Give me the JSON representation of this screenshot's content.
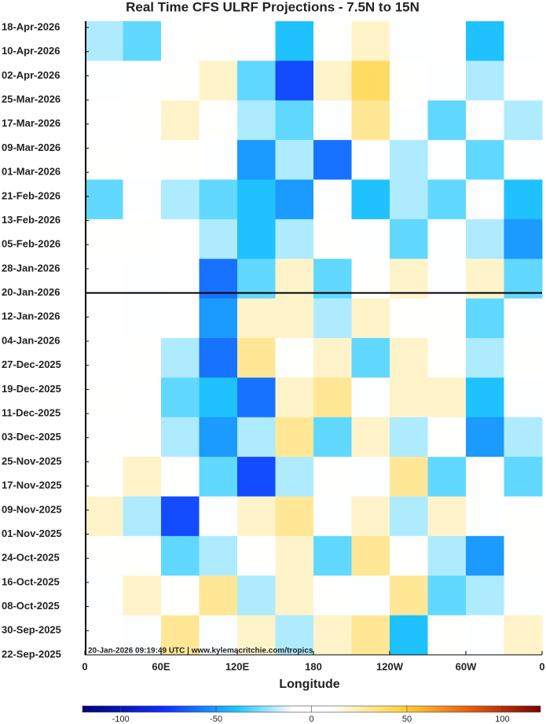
{
  "chart_data": {
    "type": "heatmap",
    "title": "Real Time CFS ULRF Projections - 7.5N to 15N",
    "xlabel": "Longitude",
    "annotation": "20-Jan-2026 09:19:49 UTC | www.kylemacritchie.com/tropics",
    "xlim": [
      0,
      360
    ],
    "xticks": [
      0,
      {
        "value": 60,
        "label": "60E"
      },
      {
        "value": 120,
        "label": "120E"
      },
      180,
      {
        "value": 240,
        "label": "120W"
      },
      {
        "value": 300,
        "label": "60W"
      },
      {
        "value": 360,
        "label": "0"
      }
    ],
    "yticks": [
      "18-Apr-2026",
      "10-Apr-2026",
      "02-Apr-2026",
      "25-Mar-2026",
      "17-Mar-2026",
      "09-Mar-2026",
      "01-Mar-2026",
      "21-Feb-2026",
      "13-Feb-2026",
      "05-Feb-2026",
      "28-Jan-2026",
      "20-Jan-2026",
      "12-Jan-2026",
      "04-Jan-2026",
      "27-Dec-2025",
      "19-Dec-2025",
      "11-Dec-2025",
      "03-Dec-2025",
      "25-Nov-2025",
      "17-Nov-2025",
      "09-Nov-2025",
      "01-Nov-2025",
      "24-Oct-2025",
      "16-Oct-2025",
      "08-Oct-2025",
      "30-Sep-2025",
      "22-Sep-2025"
    ],
    "clim": [
      -120,
      120
    ],
    "cticks": [
      -100,
      -50,
      0,
      50,
      100
    ],
    "z": [
      [
        -20,
        -30,
        0,
        10,
        -10,
        -40,
        10,
        20,
        -10,
        0,
        -40,
        -10
      ],
      [
        -10,
        0,
        10,
        20,
        -30,
        -70,
        20,
        40,
        10,
        -10,
        -20,
        0
      ],
      [
        0,
        10,
        20,
        10,
        -20,
        -30,
        -10,
        30,
        -10,
        -30,
        -10,
        -20
      ],
      [
        10,
        0,
        10,
        -10,
        -50,
        -20,
        -60,
        0,
        -20,
        -10,
        -30,
        -10
      ],
      [
        -30,
        -10,
        -20,
        -30,
        -40,
        -50,
        -10,
        -40,
        -20,
        -30,
        -10,
        -40
      ],
      [
        10,
        10,
        0,
        -20,
        -40,
        -20,
        10,
        -10,
        -30,
        -10,
        -20,
        -50
      ],
      [
        0,
        -10,
        0,
        -60,
        -30,
        20,
        -30,
        10,
        20,
        -10,
        20,
        -30
      ],
      [
        0,
        -10,
        0,
        -50,
        20,
        20,
        -20,
        20,
        10,
        10,
        -30,
        -10
      ],
      [
        0,
        10,
        -20,
        -60,
        30,
        10,
        20,
        -30,
        20,
        10,
        -20,
        10
      ],
      [
        10,
        0,
        -30,
        -40,
        -60,
        20,
        30,
        -10,
        20,
        20,
        -40,
        -10
      ],
      [
        0,
        10,
        -20,
        -50,
        -20,
        30,
        -30,
        20,
        -20,
        10,
        -50,
        -20
      ],
      [
        10,
        20,
        10,
        -30,
        -70,
        -20,
        10,
        -10,
        30,
        -30,
        10,
        -30
      ],
      [
        20,
        -20,
        -70,
        -10,
        20,
        30,
        -10,
        20,
        -20,
        20,
        -10,
        10
      ],
      [
        10,
        10,
        -30,
        -20,
        10,
        20,
        -30,
        30,
        10,
        -20,
        -50,
        10
      ],
      [
        -10,
        20,
        10,
        30,
        -20,
        20,
        10,
        -10,
        30,
        -30,
        -20,
        -10
      ],
      [
        0,
        -10,
        30,
        -10,
        20,
        -20,
        20,
        30,
        -40,
        10,
        -10,
        20
      ]
    ]
  }
}
